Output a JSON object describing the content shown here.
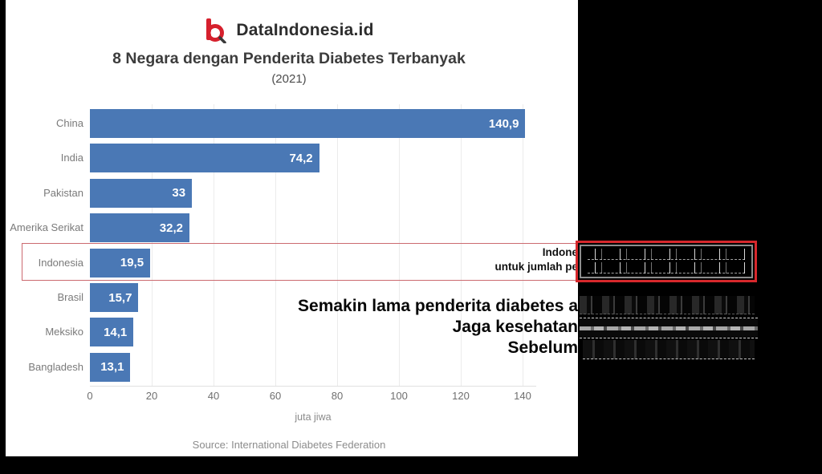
{
  "logo": {
    "brand": "DataIndonesia.id",
    "icon": "magnifier-d-logo",
    "red": "#d6202d"
  },
  "header": {
    "title": "8 Negara dengan Penderita Diabetes Terbanyak",
    "subtitle": "(2021)"
  },
  "chart_data": {
    "type": "bar",
    "orientation": "horizontal",
    "title": "8 Negara dengan Penderita Diabetes Terbanyak (2021)",
    "categories": [
      "China",
      "India",
      "Pakistan",
      "Amerika Serikat",
      "Indonesia",
      "Brasil",
      "Meksiko",
      "Bangladesh"
    ],
    "values": [
      140.9,
      74.2,
      33,
      32.2,
      19.5,
      15.7,
      14.1,
      13.1
    ],
    "value_labels": [
      "140,9",
      "74,2",
      "33",
      "32,2",
      "19,5",
      "15,7",
      "14,1",
      "13,1"
    ],
    "highlighted_category": "Indonesia",
    "xlabel": "juta jiwa",
    "xticks": [
      0,
      20,
      40,
      60,
      80,
      100,
      120,
      140
    ],
    "xlim": [
      0,
      150
    ],
    "grid": true,
    "bar_color": "#4a78b5",
    "source": "Source: International Diabetes Federation"
  },
  "callout": {
    "line1_visible": "Indone",
    "line2_visible": "untuk jumlah pe"
  },
  "overlay": {
    "line1_visible": "Semakin lama penderita diabetes a",
    "line2_visible": "Jaga kesehatan",
    "line3_visible": "Sebelum"
  },
  "colors": {
    "bar": "#4a78b5",
    "highlight_box": "#d7282c",
    "panel": "#000000",
    "background": "#ffffff"
  }
}
